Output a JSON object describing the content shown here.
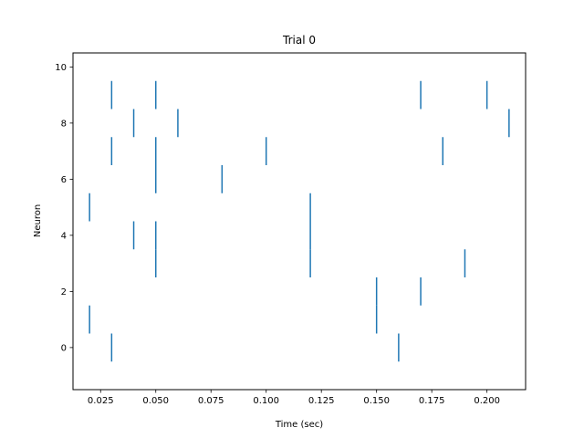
{
  "chart_data": {
    "type": "raster",
    "title": "Trial 0",
    "xlabel": "Time (sec)",
    "ylabel": "Neuron",
    "xlim": [
      0.0125,
      0.2175
    ],
    "ylim": [
      -1.5,
      10.5
    ],
    "xticks": [
      0.025,
      0.05,
      0.075,
      0.1,
      0.125,
      0.15,
      0.175,
      0.2
    ],
    "xtick_labels": [
      "0.025",
      "0.050",
      "0.075",
      "0.100",
      "0.125",
      "0.150",
      "0.175",
      "0.200"
    ],
    "yticks": [
      0,
      2,
      4,
      6,
      8,
      10
    ],
    "ytick_labels": [
      "0",
      "2",
      "4",
      "6",
      "8",
      "10"
    ],
    "grid": false,
    "color": "#1f77b4",
    "spike_height": 1.0,
    "spikes": [
      {
        "neuron": 0,
        "times": [
          0.03,
          0.16
        ]
      },
      {
        "neuron": 1,
        "times": [
          0.02,
          0.15
        ]
      },
      {
        "neuron": 2,
        "times": [
          0.15,
          0.17
        ]
      },
      {
        "neuron": 3,
        "times": [
          0.05,
          0.12,
          0.19
        ]
      },
      {
        "neuron": 4,
        "times": [
          0.04,
          0.05,
          0.12
        ]
      },
      {
        "neuron": 5,
        "times": [
          0.02,
          0.12
        ]
      },
      {
        "neuron": 6,
        "times": [
          0.05,
          0.08
        ]
      },
      {
        "neuron": 7,
        "times": [
          0.03,
          0.05,
          0.1,
          0.18
        ]
      },
      {
        "neuron": 8,
        "times": [
          0.04,
          0.06,
          0.21
        ]
      },
      {
        "neuron": 9,
        "times": [
          0.03,
          0.05,
          0.17,
          0.2
        ]
      }
    ]
  }
}
